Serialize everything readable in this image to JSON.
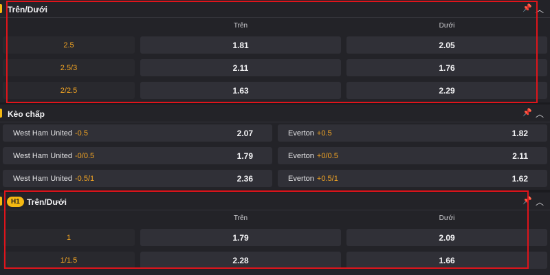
{
  "ou": {
    "title": "Trên/Dưới",
    "col_over": "Trên",
    "col_under": "Dưới",
    "rows": [
      {
        "line": "2.5",
        "over": "1.81",
        "under": "2.05"
      },
      {
        "line": "2.5/3",
        "over": "2.11",
        "under": "1.76"
      },
      {
        "line": "2/2.5",
        "over": "1.63",
        "under": "2.29"
      }
    ]
  },
  "hc": {
    "title": "Kèo chấp",
    "rows": [
      {
        "home": "West Ham United",
        "home_line": "-0.5",
        "home_odd": "2.07",
        "away": "Everton",
        "away_line": "+0.5",
        "away_odd": "1.82"
      },
      {
        "home": "West Ham United",
        "home_line": "-0/0.5",
        "home_odd": "1.79",
        "away": "Everton",
        "away_line": "+0/0.5",
        "away_odd": "2.11"
      },
      {
        "home": "West Ham United",
        "home_line": "-0.5/1",
        "home_odd": "2.36",
        "away": "Everton",
        "away_line": "+0.5/1",
        "away_odd": "1.62"
      }
    ]
  },
  "h1": {
    "badge": "H1",
    "title": "Trên/Dưới",
    "col_over": "Trên",
    "col_under": "Dưới",
    "rows": [
      {
        "line": "1",
        "over": "1.79",
        "under": "2.09"
      },
      {
        "line": "1/1.5",
        "over": "2.28",
        "under": "1.66"
      }
    ]
  },
  "icons": {
    "pin": "pin-icon",
    "collapse": "chevron-up-icon"
  },
  "colors": {
    "accent": "#f5b912",
    "line": "#f5a623",
    "highlight": "#e0141b"
  }
}
